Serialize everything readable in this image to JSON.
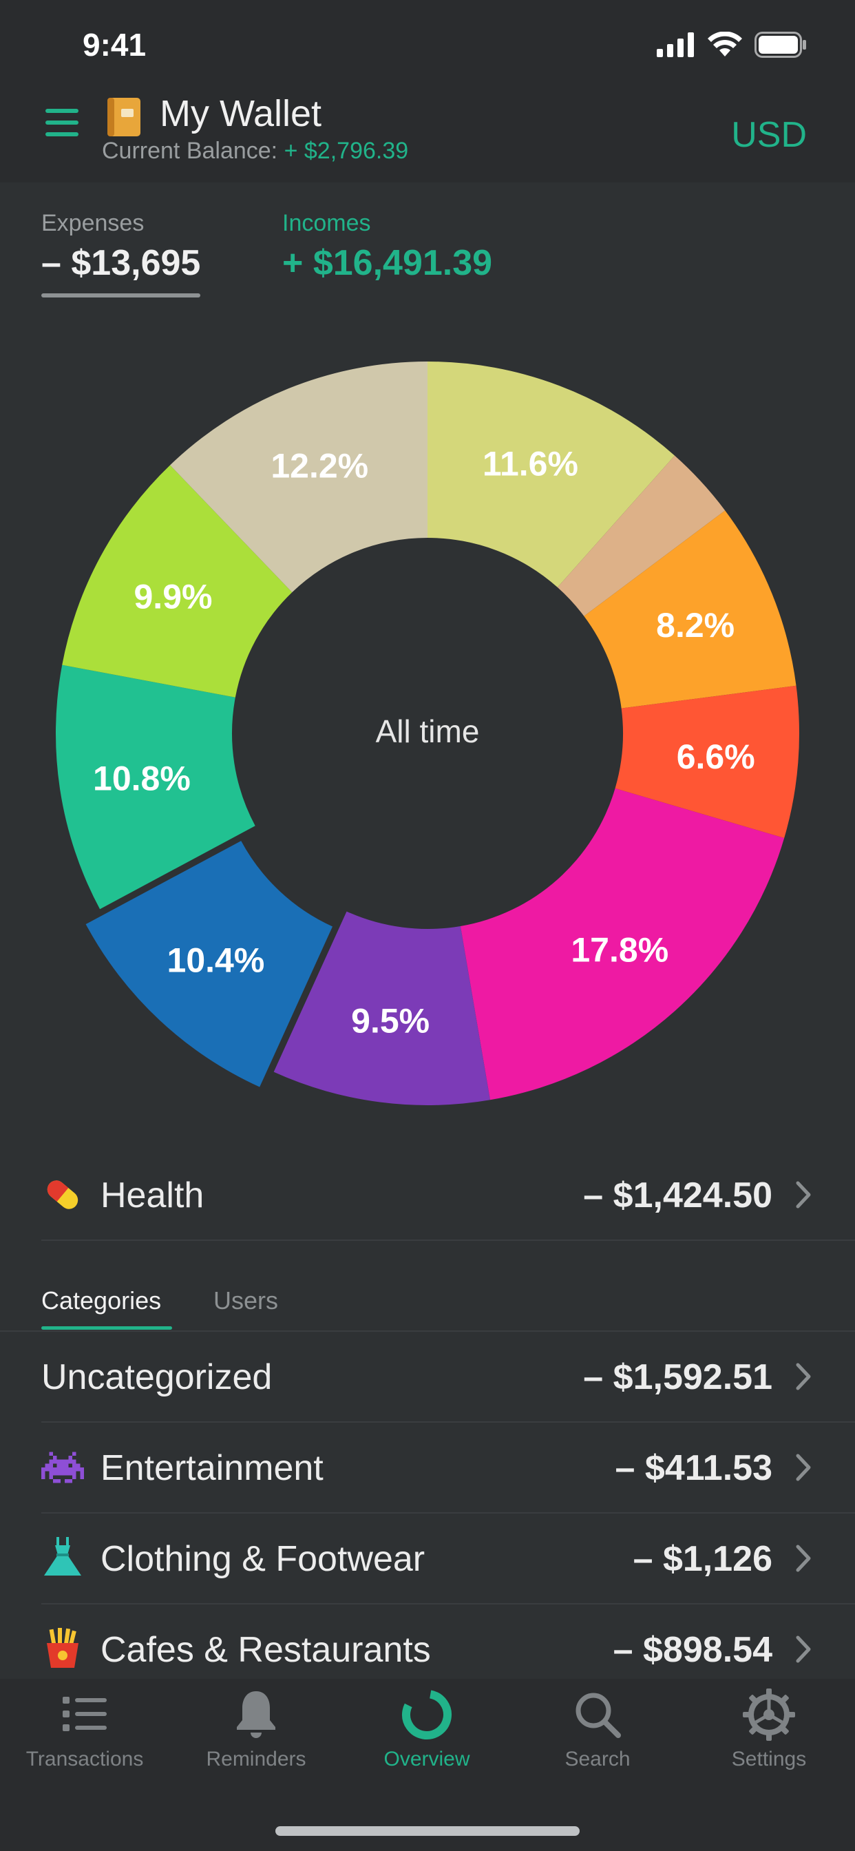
{
  "status": {
    "time": "9:41"
  },
  "header": {
    "title": "My Wallet",
    "balance_label": "Current Balance:",
    "balance_value": "+ $2,796.39",
    "currency": "USD"
  },
  "summary": {
    "expenses_label": "Expenses",
    "expenses_value": "– $13,695",
    "incomes_label": "Incomes",
    "incomes_value": "+ $16,491.39"
  },
  "chart_data": {
    "type": "pie",
    "center_label": "All time",
    "slices": [
      {
        "label": "11.6%",
        "value": 11.6,
        "color": "#d4d77a"
      },
      {
        "label": "",
        "value": 3.2,
        "color": "#ddb188"
      },
      {
        "label": "8.2%",
        "value": 8.2,
        "color": "#fda22a"
      },
      {
        "label": "6.6%",
        "value": 6.6,
        "color": "#ff5634"
      },
      {
        "label": "17.8%",
        "value": 17.8,
        "color": "#ee1aa3"
      },
      {
        "label": "9.5%",
        "value": 9.5,
        "color": "#7c3bb7"
      },
      {
        "label": "10.4%",
        "value": 10.4,
        "color": "#1a6fb6",
        "selected": true
      },
      {
        "label": "10.8%",
        "value": 10.8,
        "color": "#21c191"
      },
      {
        "label": "9.9%",
        "value": 9.9,
        "color": "#abdf3a"
      },
      {
        "label": "12.2%",
        "value": 12.2,
        "color": "#d0c8ab"
      }
    ]
  },
  "selected_category": {
    "label": "Health",
    "amount": "– $1,424.50"
  },
  "tabs": {
    "categories": "Categories",
    "users": "Users"
  },
  "categories": [
    {
      "label": "Uncategorized",
      "amount": "– $1,592.51",
      "icon": "none"
    },
    {
      "label": "Entertainment",
      "amount": "– $411.53",
      "icon": "alien-monster-icon"
    },
    {
      "label": "Clothing & Footwear",
      "amount": "– $1,126",
      "icon": "dress-icon"
    },
    {
      "label": "Cafes & Restaurants",
      "amount": "– $898.54",
      "icon": "fries-icon"
    }
  ],
  "tabbar": {
    "transactions": "Transactions",
    "reminders": "Reminders",
    "overview": "Overview",
    "search": "Search",
    "settings": "Settings"
  },
  "colors": {
    "accent": "#21b38a",
    "background": "#2e3133",
    "bar": "#2a2c2e"
  }
}
